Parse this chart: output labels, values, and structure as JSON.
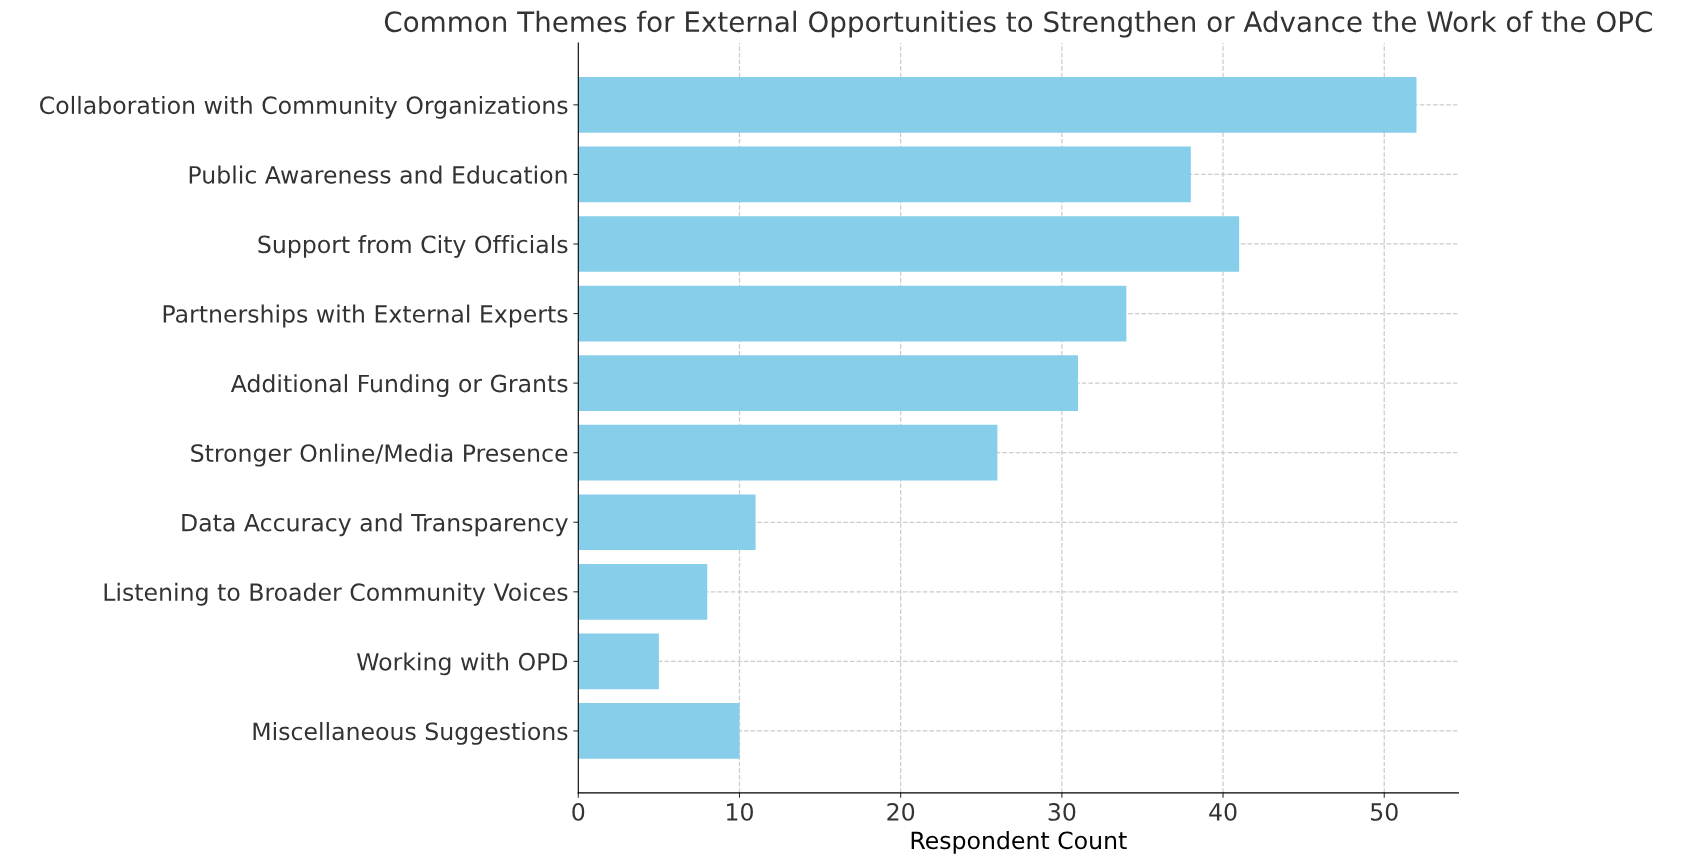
{
  "chart_data": {
    "type": "bar",
    "orientation": "horizontal",
    "title": "Common Themes for External Opportunities to Strengthen or Advance the Work of the OPC",
    "xlabel": "Respondent Count",
    "categories": [
      "Collaboration with Community Organizations",
      "Public Awareness and Education",
      "Support from City Officials",
      "Partnerships with External Experts",
      "Additional Funding or Grants",
      "Stronger Online/Media Presence",
      "Data Accuracy and Transparency",
      "Listening to Broader Community Voices",
      "Working with OPD",
      "Miscellaneous Suggestions"
    ],
    "values": [
      52,
      38,
      41,
      34,
      31,
      26,
      11,
      8,
      5,
      10
    ],
    "color": "#87ceeb",
    "xlim": [
      0,
      54.6
    ],
    "xticks": [
      0,
      10,
      20,
      30,
      40,
      50
    ],
    "grid": true,
    "line_style": "dashed"
  }
}
